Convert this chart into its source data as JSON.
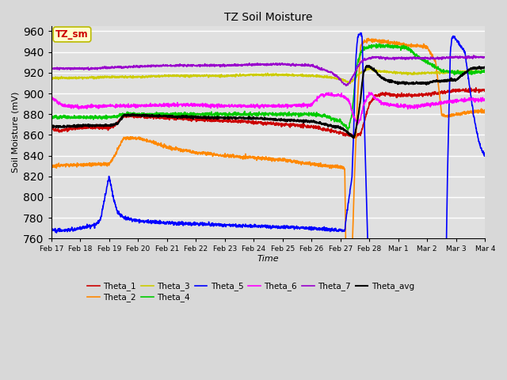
{
  "title": "TZ Soil Moisture",
  "xlabel": "Time",
  "ylabel": "Soil Moisture (mV)",
  "ylim": [
    760,
    965
  ],
  "yticks": [
    760,
    780,
    800,
    820,
    840,
    860,
    880,
    900,
    920,
    940,
    960
  ],
  "bg_color": "#d8d8d8",
  "plot_bg_color": "#e0e0e0",
  "series_colors": {
    "Theta_1": "#cc0000",
    "Theta_2": "#ff8800",
    "Theta_3": "#cccc00",
    "Theta_4": "#00cc00",
    "Theta_5": "#0000ff",
    "Theta_6": "#ff00ff",
    "Theta_7": "#9900cc",
    "Theta_avg": "#000000"
  },
  "label_box_facecolor": "#ffffcc",
  "label_box_edgecolor": "#bbbb00",
  "label_text_color": "#cc0000",
  "xtick_labels": [
    "Feb 17",
    "Feb 18",
    "Feb 19",
    "Feb 20",
    "Feb 21",
    "Feb 22",
    "Feb 23",
    "Feb 24",
    "Feb 25",
    "Feb 26",
    "Feb 27",
    "Feb 28",
    "Mar 1",
    "Mar 2",
    "Mar 3",
    "Mar 4"
  ]
}
